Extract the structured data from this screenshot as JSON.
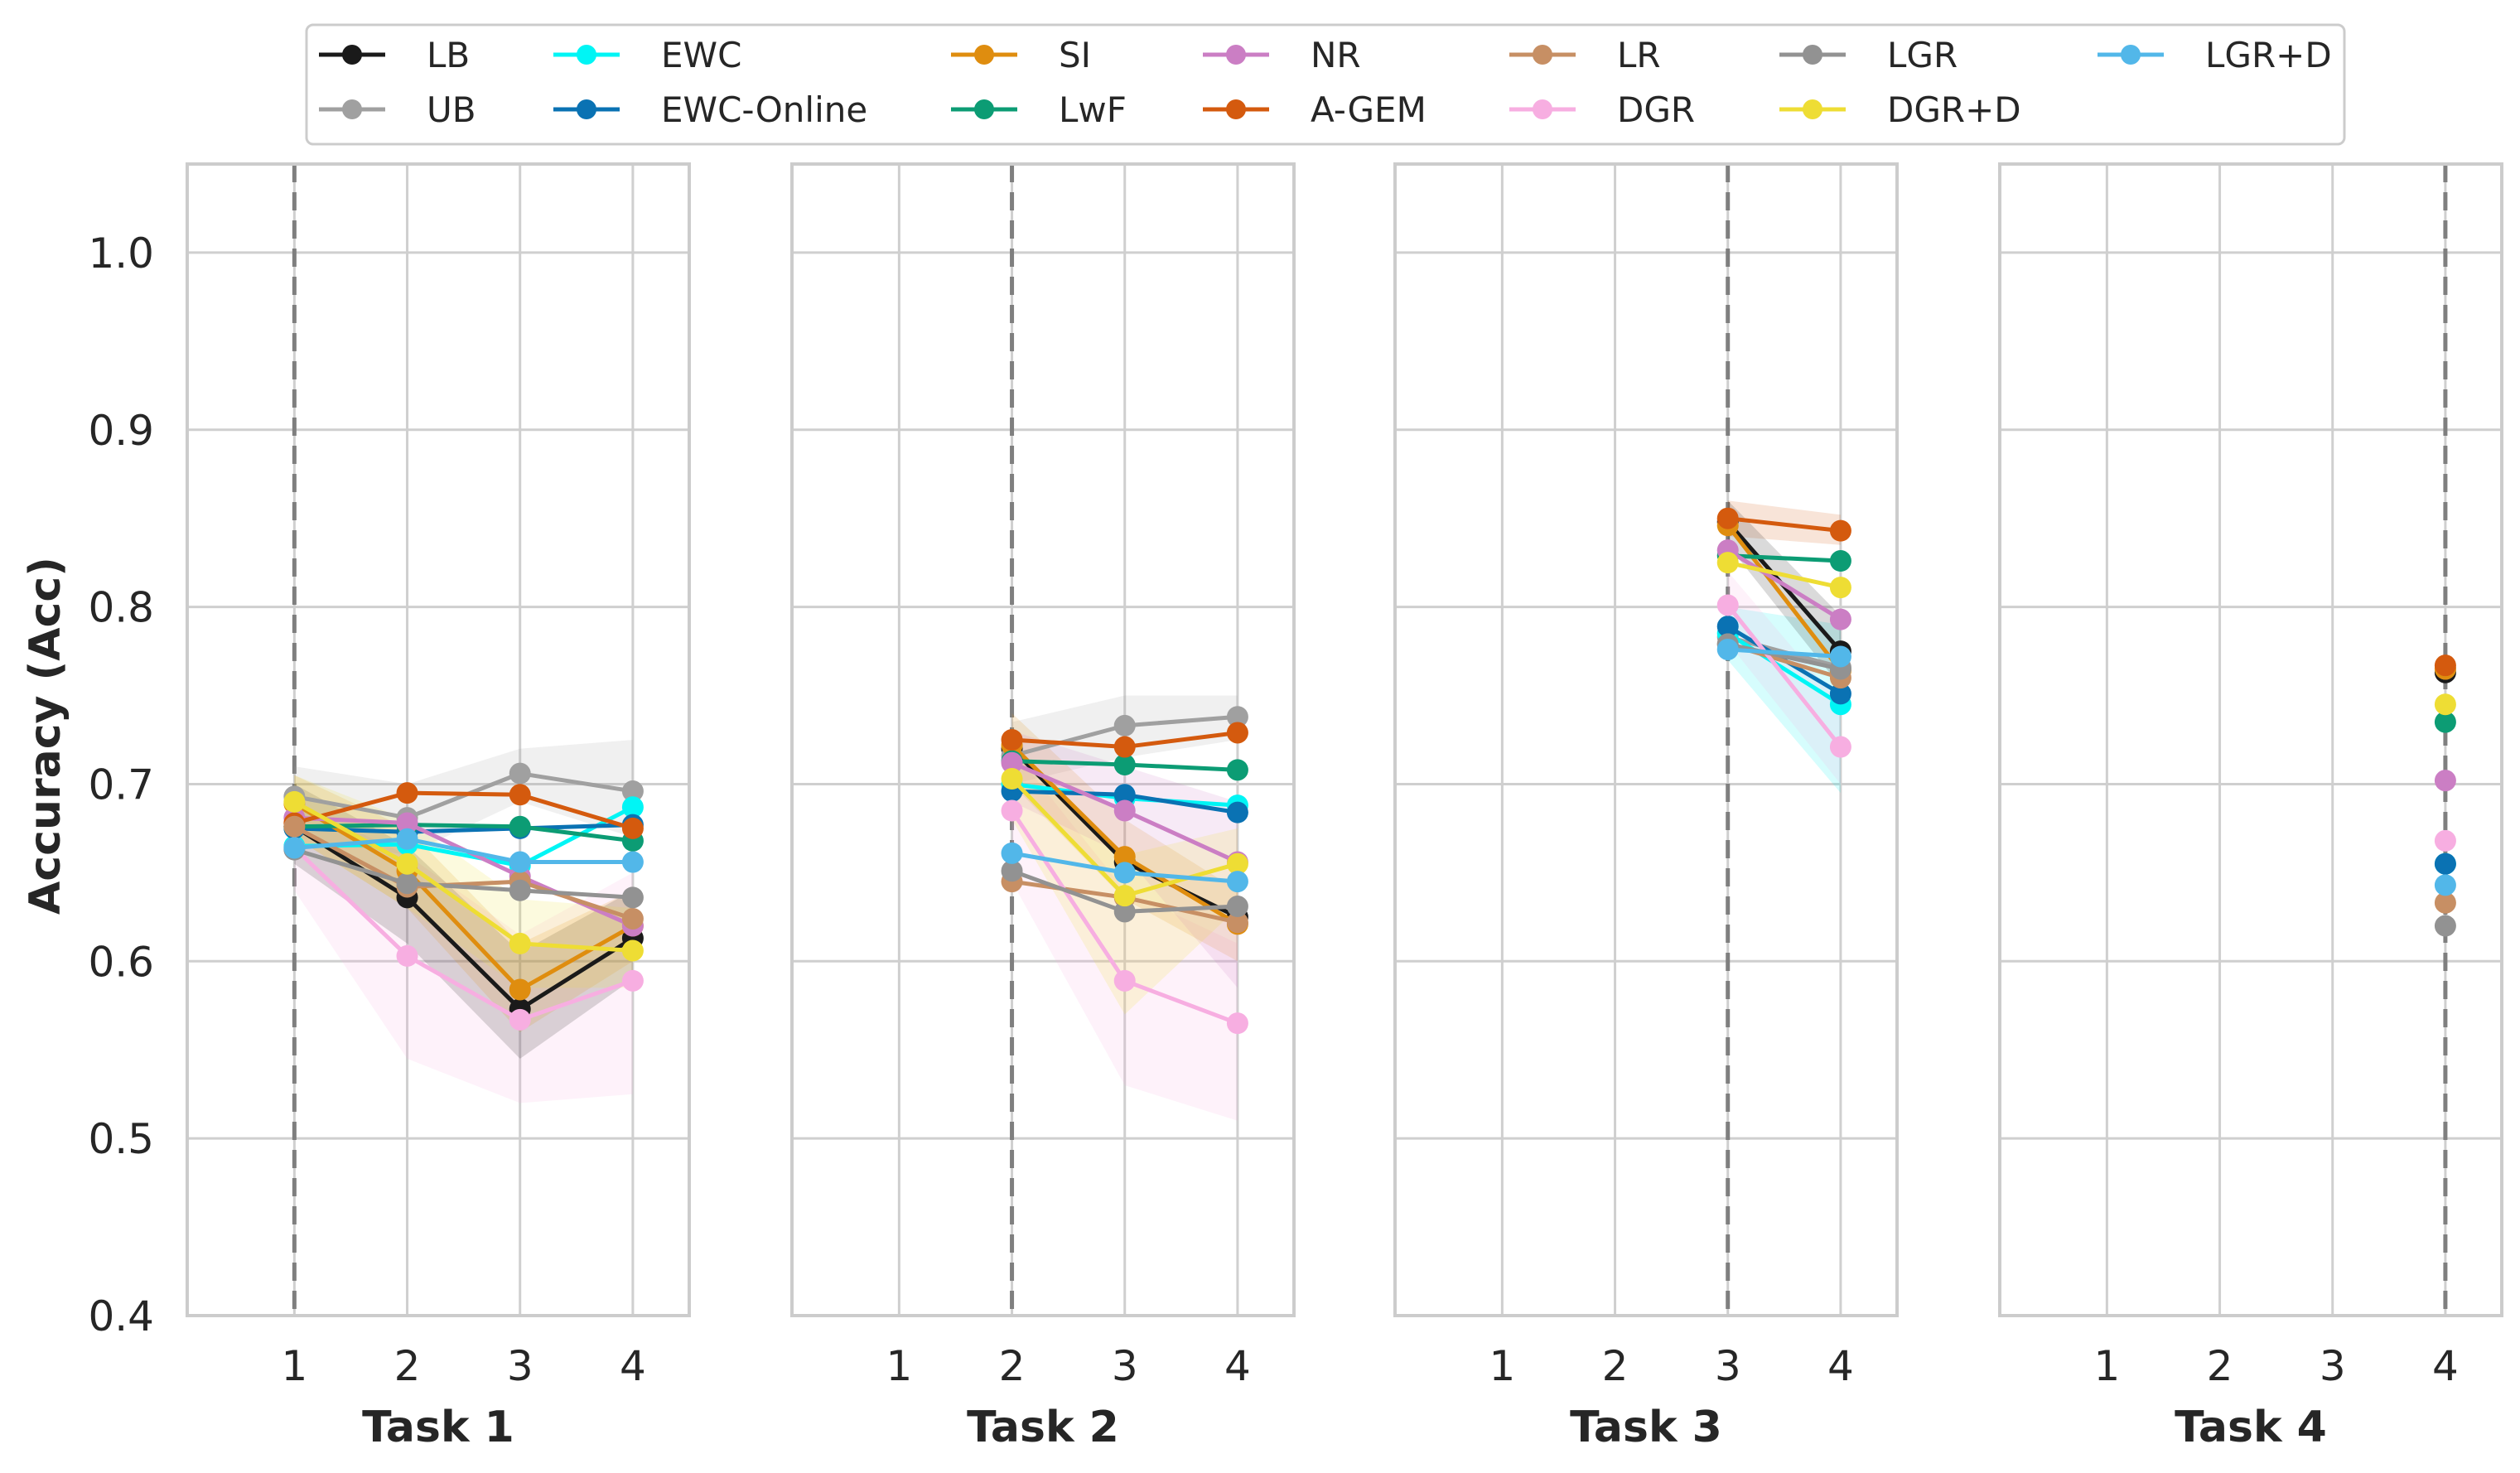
{
  "chart_data": {
    "type": "line",
    "ylabel": "Accuracy (Acc)",
    "ylim": [
      0.4,
      1.05
    ],
    "yticks": [
      "0.4",
      "0.5",
      "0.6",
      "0.7",
      "0.8",
      "0.9",
      "1.0"
    ],
    "ytick_values": [
      0.4,
      0.5,
      0.6,
      0.7,
      0.8,
      0.9,
      1.0
    ],
    "xticks": [
      "1",
      "2",
      "3",
      "4"
    ],
    "xtick_values": [
      1,
      2,
      3,
      4
    ],
    "xlim": [
      0.05,
      4.5
    ],
    "grid": true,
    "legend_position": "top",
    "legend_columns": 7,
    "methods": [
      {
        "name": "LB",
        "color": "#1a1a1a"
      },
      {
        "name": "UB",
        "color": "#a0a0a0"
      },
      {
        "name": "EWC",
        "color": "#00f5f5"
      },
      {
        "name": "EWC-Online",
        "color": "#0a72b3"
      },
      {
        "name": "SI",
        "color": "#df8d0f"
      },
      {
        "name": "LwF",
        "color": "#0c9c74"
      },
      {
        "name": "NR",
        "color": "#cb7ec4"
      },
      {
        "name": "A-GEM",
        "color": "#d45a0e"
      },
      {
        "name": "LR",
        "color": "#c78f64"
      },
      {
        "name": "DGR",
        "color": "#f7aee1"
      },
      {
        "name": "LGR",
        "color": "#929292"
      },
      {
        "name": "DGR+D",
        "color": "#eedd34"
      },
      {
        "name": "LGR+D",
        "color": "#52b7e9"
      }
    ],
    "panels": [
      {
        "title": "Task 1",
        "trained_task": 1,
        "x": [
          1,
          2,
          3,
          4
        ],
        "series": [
          {
            "name": "LB",
            "values": [
              0.676,
              0.636,
              0.573,
              0.613
            ]
          },
          {
            "name": "UB",
            "values": [
              0.693,
              0.681,
              0.706,
              0.696
            ]
          },
          {
            "name": "EWC",
            "values": [
              0.665,
              0.666,
              0.654,
              0.687
            ]
          },
          {
            "name": "EWC-Online",
            "values": [
              0.675,
              0.673,
              0.675,
              0.677
            ]
          },
          {
            "name": "SI",
            "values": [
              0.689,
              0.651,
              0.584,
              0.62
            ]
          },
          {
            "name": "LwF",
            "values": [
              0.676,
              0.677,
              0.676,
              0.668
            ]
          },
          {
            "name": "NR",
            "values": [
              0.681,
              0.678,
              0.648,
              0.62
            ]
          },
          {
            "name": "A-GEM",
            "values": [
              0.678,
              0.695,
              0.694,
              0.675
            ]
          },
          {
            "name": "LR",
            "values": [
              0.676,
              0.642,
              0.645,
              0.624
            ]
          },
          {
            "name": "DGR",
            "values": [
              0.664,
              0.603,
              0.567,
              0.589
            ]
          },
          {
            "name": "LGR",
            "values": [
              0.663,
              0.644,
              0.64,
              0.636
            ]
          },
          {
            "name": "DGR+D",
            "values": [
              0.69,
              0.655,
              0.61,
              0.606
            ]
          },
          {
            "name": "LGR+D",
            "values": [
              0.664,
              0.669,
              0.656,
              0.656
            ]
          }
        ],
        "bands": [
          {
            "name": "DGR",
            "lower": [
              0.64,
              0.545,
              0.52,
              0.525
            ],
            "upper": [
              0.69,
              0.66,
              0.615,
              0.65
            ]
          },
          {
            "name": "LB",
            "lower": [
              0.655,
              0.61,
              0.545,
              0.59
            ],
            "upper": [
              0.7,
              0.665,
              0.605,
              0.64
            ]
          },
          {
            "name": "UB",
            "lower": [
              0.67,
              0.66,
              0.69,
              0.67
            ],
            "upper": [
              0.71,
              0.7,
              0.72,
              0.725
            ]
          },
          {
            "name": "SI",
            "lower": [
              0.67,
              0.63,
              0.56,
              0.6
            ],
            "upper": [
              0.705,
              0.675,
              0.61,
              0.64
            ]
          },
          {
            "name": "DGR+D",
            "lower": [
              0.67,
              0.63,
              0.585,
              0.585
            ],
            "upper": [
              0.705,
              0.68,
              0.635,
              0.63
            ]
          }
        ]
      },
      {
        "title": "Task 2",
        "trained_task": 2,
        "x": [
          2,
          3,
          4
        ],
        "series": [
          {
            "name": "LB",
            "values": [
              0.72,
              0.656,
              0.625
            ]
          },
          {
            "name": "UB",
            "values": [
              0.716,
              0.733,
              0.738
            ]
          },
          {
            "name": "EWC",
            "values": [
              0.7,
              0.692,
              0.688
            ]
          },
          {
            "name": "EWC-Online",
            "values": [
              0.696,
              0.694,
              0.684
            ]
          },
          {
            "name": "SI",
            "values": [
              0.722,
              0.659,
              0.621
            ]
          },
          {
            "name": "LwF",
            "values": [
              0.713,
              0.711,
              0.708
            ]
          },
          {
            "name": "NR",
            "values": [
              0.712,
              0.685,
              0.656
            ]
          },
          {
            "name": "A-GEM",
            "values": [
              0.725,
              0.721,
              0.729
            ]
          },
          {
            "name": "LR",
            "values": [
              0.645,
              0.636,
              0.622
            ]
          },
          {
            "name": "DGR",
            "values": [
              0.685,
              0.589,
              0.565
            ]
          },
          {
            "name": "LGR",
            "values": [
              0.651,
              0.628,
              0.631
            ]
          },
          {
            "name": "DGR+D",
            "values": [
              0.703,
              0.637,
              0.655
            ]
          },
          {
            "name": "LGR+D",
            "values": [
              0.661,
              0.65,
              0.645
            ]
          }
        ],
        "bands": [
          {
            "name": "DGR",
            "lower": [
              0.645,
              0.53,
              0.51
            ],
            "upper": [
              0.72,
              0.64,
              0.61
            ]
          },
          {
            "name": "UB",
            "lower": [
              0.7,
              0.715,
              0.725
            ],
            "upper": [
              0.735,
              0.75,
              0.75
            ]
          },
          {
            "name": "SI",
            "lower": [
              0.7,
              0.635,
              0.6
            ],
            "upper": [
              0.74,
              0.68,
              0.64
            ]
          },
          {
            "name": "NR",
            "lower": [
              0.69,
              0.66,
              0.585
            ],
            "upper": [
              0.73,
              0.71,
              0.69
            ]
          },
          {
            "name": "DGR+D",
            "lower": [
              0.68,
              0.57,
              0.63
            ],
            "upper": [
              0.72,
              0.66,
              0.675
            ]
          }
        ]
      },
      {
        "title": "Task 3",
        "trained_task": 3,
        "x": [
          3,
          4
        ],
        "series": [
          {
            "name": "LB",
            "values": [
              0.848,
              0.775
            ]
          },
          {
            "name": "UB",
            "values": [
              0.783,
              0.766
            ]
          },
          {
            "name": "EWC",
            "values": [
              0.785,
              0.745
            ]
          },
          {
            "name": "EWC-Online",
            "values": [
              0.789,
              0.751
            ]
          },
          {
            "name": "SI",
            "values": [
              0.846,
              0.764
            ]
          },
          {
            "name": "LwF",
            "values": [
              0.829,
              0.826
            ]
          },
          {
            "name": "NR",
            "values": [
              0.832,
              0.793
            ]
          },
          {
            "name": "A-GEM",
            "values": [
              0.85,
              0.843
            ]
          },
          {
            "name": "LR",
            "values": [
              0.779,
              0.76
            ]
          },
          {
            "name": "DGR",
            "values": [
              0.801,
              0.721
            ]
          },
          {
            "name": "LGR",
            "values": [
              0.779,
              0.765
            ]
          },
          {
            "name": "DGR+D",
            "values": [
              0.825,
              0.811
            ]
          },
          {
            "name": "LGR+D",
            "values": [
              0.776,
              0.772
            ]
          }
        ],
        "bands": [
          {
            "name": "EWC",
            "lower": [
              0.77,
              0.695
            ],
            "upper": [
              0.8,
              0.79
            ]
          },
          {
            "name": "DGR",
            "lower": [
              0.78,
              0.7
            ],
            "upper": [
              0.82,
              0.745
            ]
          },
          {
            "name": "A-GEM",
            "lower": [
              0.84,
              0.835
            ],
            "upper": [
              0.86,
              0.852
            ]
          },
          {
            "name": "LB",
            "lower": [
              0.835,
              0.755
            ],
            "upper": [
              0.86,
              0.795
            ]
          }
        ]
      },
      {
        "title": "Task 4",
        "trained_task": 4,
        "x": [
          4
        ],
        "series": [
          {
            "name": "LB",
            "values": [
              0.763
            ]
          },
          {
            "name": "UB",
            "values": [
              0.765
            ]
          },
          {
            "name": "EWC",
            "values": [
              0.655
            ]
          },
          {
            "name": "EWC-Online",
            "values": [
              0.655
            ]
          },
          {
            "name": "SI",
            "values": [
              0.765
            ]
          },
          {
            "name": "LwF",
            "values": [
              0.735
            ]
          },
          {
            "name": "NR",
            "values": [
              0.702
            ]
          },
          {
            "name": "A-GEM",
            "values": [
              0.767
            ]
          },
          {
            "name": "LR",
            "values": [
              0.633
            ]
          },
          {
            "name": "DGR",
            "values": [
              0.668
            ]
          },
          {
            "name": "LGR",
            "values": [
              0.62
            ]
          },
          {
            "name": "DGR+D",
            "values": [
              0.745
            ]
          },
          {
            "name": "LGR+D",
            "values": [
              0.643
            ]
          }
        ],
        "bands": []
      }
    ]
  }
}
